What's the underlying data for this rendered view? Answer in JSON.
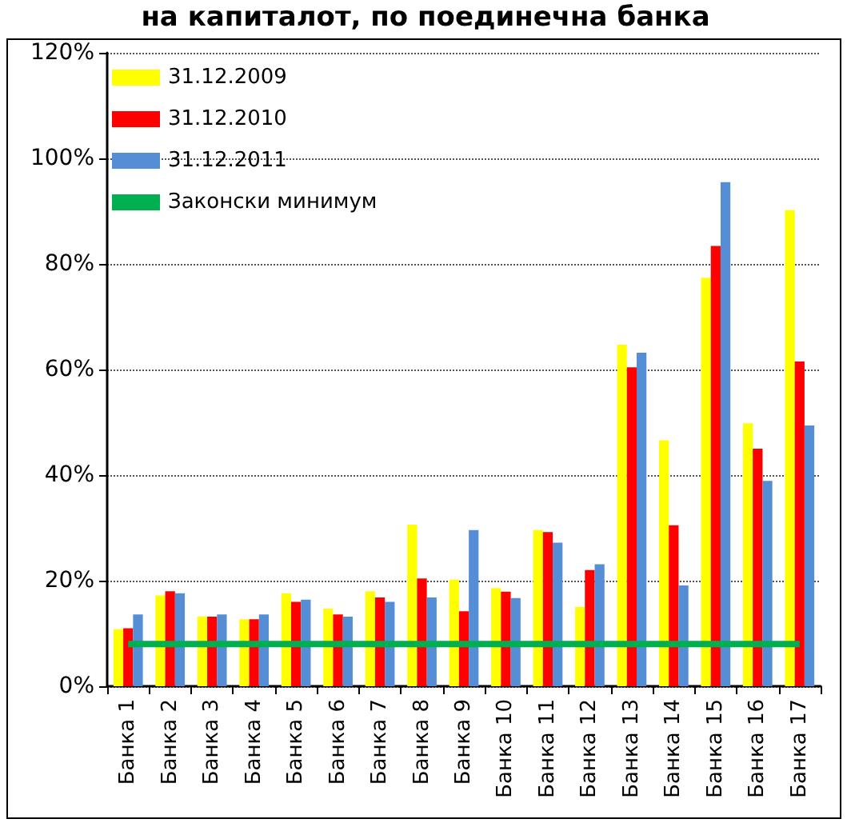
{
  "chart_data": {
    "type": "bar",
    "title": "на капиталот, по поединечна банка",
    "categories": [
      "Банка 1",
      "Банка 2",
      "Банка 3",
      "Банка 4",
      "Банка 5",
      "Банка 6",
      "Банка 7",
      "Банка 8",
      "Банка 9",
      "Банка 10",
      "Банка 11",
      "Банка 12",
      "Банка 13",
      "Банка 14",
      "Банка 15",
      "Банка 16",
      "Банка 17"
    ],
    "series": [
      {
        "name": "31.12.2009",
        "color": "#ffff00",
        "values": [
          10.8,
          17.2,
          13.2,
          12.7,
          17.6,
          14.7,
          18,
          30.6,
          20.2,
          18.6,
          29.6,
          15,
          64.7,
          46.6,
          77.4,
          49.8,
          90.2
        ]
      },
      {
        "name": "31.12.2010",
        "color": "#ff0000",
        "values": [
          11,
          18,
          13.2,
          12.7,
          16,
          13.6,
          16.8,
          20.4,
          14.2,
          17.9,
          29.2,
          22,
          60.4,
          30.5,
          83.4,
          45,
          61.5
        ]
      },
      {
        "name": "31.12.2011",
        "color": "#558ed5",
        "values": [
          13.6,
          17.6,
          13.6,
          13.6,
          16.4,
          13.2,
          16,
          16.8,
          29.6,
          16.7,
          27.2,
          23.1,
          63.2,
          19.1,
          95.5,
          38.9,
          49.4
        ]
      },
      {
        "name": "Законски минимум",
        "type": "line",
        "color": "#00b050",
        "values": [
          8,
          8,
          8,
          8,
          8,
          8,
          8,
          8,
          8,
          8,
          8,
          8,
          8,
          8,
          8,
          8,
          8
        ]
      }
    ],
    "ylim": [
      0,
      120
    ],
    "yticks": [
      {
        "value": 0,
        "label": "0%"
      },
      {
        "value": 20,
        "label": "20%"
      },
      {
        "value": 40,
        "label": "40%"
      },
      {
        "value": 60,
        "label": "60%"
      },
      {
        "value": 80,
        "label": "80%"
      },
      {
        "value": 100,
        "label": "100%"
      },
      {
        "value": 120,
        "label": "120%"
      }
    ],
    "grid": "y",
    "legend": "top left",
    "marker": "none"
  }
}
